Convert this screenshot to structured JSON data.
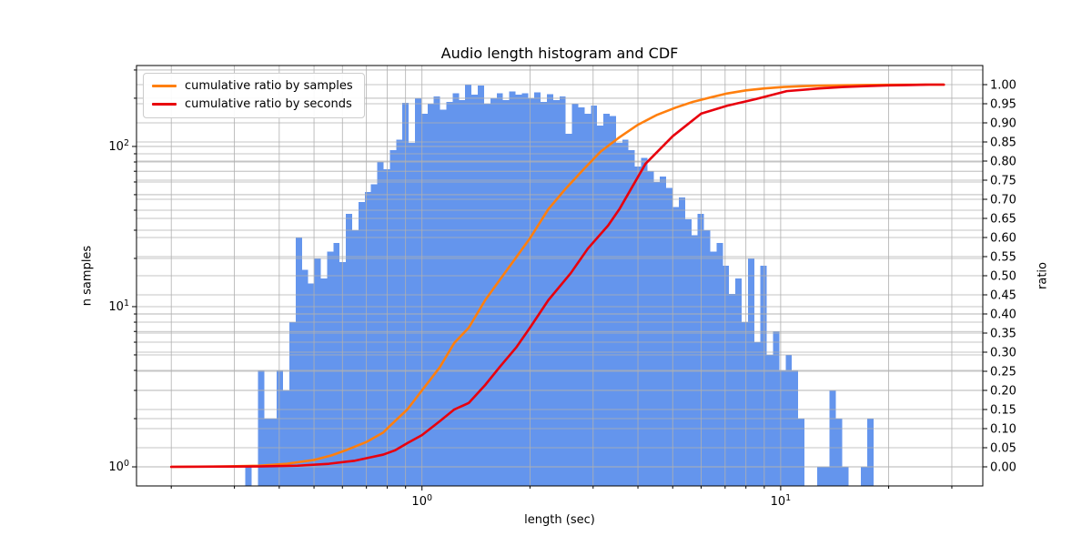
{
  "title": "Audio length histogram and CDF",
  "axis_labels": {
    "x": "length (sec)",
    "y_left": "n samples",
    "y_right": "ratio"
  },
  "legend": {
    "items": [
      {
        "label": "cumulative ratio by samples",
        "color": "#ff7f0e"
      },
      {
        "label": "cumulative ratio by seconds",
        "color": "#e8000d"
      }
    ]
  },
  "colors": {
    "bars": "#6495ed",
    "grid": "#b0b0b0",
    "axis": "#000000",
    "text": "#000000",
    "background": "#ffffff"
  },
  "axes": {
    "x": {
      "scale": "log",
      "range": [
        0.16,
        36.6
      ],
      "major_ticks": [
        {
          "value": 1,
          "base": "10",
          "exp": "0"
        },
        {
          "value": 10,
          "base": "10",
          "exp": "1"
        }
      ],
      "minor_ticks": [
        0.2,
        0.3,
        0.4,
        0.5,
        0.6,
        0.7,
        0.8,
        0.9,
        2,
        3,
        4,
        5,
        6,
        7,
        8,
        9,
        20,
        30
      ]
    },
    "y_left": {
      "scale": "log",
      "range": [
        0.76,
        320
      ],
      "major_ticks": [
        {
          "value": 1,
          "base": "10",
          "exp": "0"
        },
        {
          "value": 10,
          "base": "10",
          "exp": "1"
        },
        {
          "value": 100,
          "base": "10",
          "exp": "2"
        }
      ],
      "minor_ticks": [
        2,
        3,
        4,
        5,
        6,
        7,
        8,
        9,
        20,
        30,
        40,
        50,
        60,
        70,
        80,
        90,
        200,
        300
      ]
    },
    "y_right": {
      "scale": "linear",
      "range": [
        -0.05,
        1.05
      ],
      "ticks": [
        0,
        0.05,
        0.1,
        0.15,
        0.2,
        0.25,
        0.3,
        0.35,
        0.4,
        0.45,
        0.5,
        0.55,
        0.6,
        0.65,
        0.7,
        0.75,
        0.8,
        0.85,
        0.9,
        0.95,
        1
      ],
      "labels": [
        "0.00",
        "0.05",
        "0.10",
        "0.15",
        "0.20",
        "0.25",
        "0.30",
        "0.35",
        "0.40",
        "0.45",
        "0.50",
        "0.55",
        "0.60",
        "0.65",
        "0.70",
        "0.75",
        "0.80",
        "0.85",
        "0.90",
        "0.95",
        "1.00"
      ]
    }
  },
  "chart_data": {
    "type": "histogram_with_cdf_lines",
    "title": "Audio length histogram and CDF",
    "xlabel": "length (sec)",
    "ylabel": "n samples",
    "y2label": "ratio",
    "x_scale": "log",
    "y_scale": "log",
    "histogram": {
      "name": "audio length histogram",
      "unit": "sec",
      "bin_edges_log10": {
        "start": -0.4924,
        "step": 0.017513,
        "n_bins": 100
      },
      "first_bin_sec": 0.322,
      "last_bin_sec": 18.2,
      "counts": [
        1,
        0,
        4,
        2,
        2,
        4,
        3,
        8,
        27,
        17,
        14,
        20,
        15,
        22,
        25,
        19,
        38,
        30,
        45,
        52,
        58,
        80,
        72,
        95,
        110,
        187,
        105,
        200,
        160,
        185,
        205,
        170,
        190,
        215,
        195,
        243,
        210,
        240,
        185,
        200,
        215,
        195,
        220,
        210,
        215,
        200,
        218,
        190,
        212,
        195,
        205,
        120,
        185,
        175,
        160,
        180,
        135,
        160,
        155,
        105,
        110,
        95,
        75,
        85,
        70,
        60,
        65,
        55,
        42,
        48,
        35,
        28,
        38,
        30,
        22,
        25,
        18,
        12,
        15,
        8,
        20,
        6,
        18,
        5,
        7,
        4,
        5,
        4,
        2,
        0,
        0,
        1,
        1,
        3,
        2,
        1,
        0,
        0,
        1,
        2
      ]
    },
    "series": [
      {
        "name": "cumulative ratio by samples",
        "color": "#ff7f0e",
        "points": [
          [
            0.2,
            0
          ],
          [
            0.28,
            0.001
          ],
          [
            0.35,
            0.003
          ],
          [
            0.42,
            0.008
          ],
          [
            0.5,
            0.018
          ],
          [
            0.56,
            0.03
          ],
          [
            0.62,
            0.045
          ],
          [
            0.7,
            0.065
          ],
          [
            0.78,
            0.09
          ],
          [
            0.82,
            0.11
          ],
          [
            0.91,
            0.15
          ],
          [
            1.0,
            0.2
          ],
          [
            1.12,
            0.26
          ],
          [
            1.23,
            0.324
          ],
          [
            1.35,
            0.364
          ],
          [
            1.5,
            0.436
          ],
          [
            1.65,
            0.49
          ],
          [
            1.83,
            0.548
          ],
          [
            2.0,
            0.598
          ],
          [
            2.25,
            0.674
          ],
          [
            2.5,
            0.725
          ],
          [
            2.8,
            0.775
          ],
          [
            3.15,
            0.825
          ],
          [
            3.55,
            0.862
          ],
          [
            4.0,
            0.895
          ],
          [
            4.5,
            0.92
          ],
          [
            5.1,
            0.94
          ],
          [
            5.7,
            0.955
          ],
          [
            6.4,
            0.967
          ],
          [
            7.1,
            0.977
          ],
          [
            8.0,
            0.985
          ],
          [
            9.0,
            0.99
          ],
          [
            10.2,
            0.994
          ],
          [
            11.5,
            0.996
          ],
          [
            13,
            0.9975
          ],
          [
            15,
            0.9985
          ],
          [
            17,
            0.999
          ],
          [
            20,
            0.9995
          ],
          [
            24,
            1.0
          ],
          [
            28.5,
            1.0
          ]
        ]
      },
      {
        "name": "cumulative ratio by seconds",
        "color": "#e8000d",
        "points": [
          [
            0.2,
            0
          ],
          [
            0.35,
            0.001
          ],
          [
            0.45,
            0.003
          ],
          [
            0.55,
            0.008
          ],
          [
            0.65,
            0.016
          ],
          [
            0.72,
            0.025
          ],
          [
            0.78,
            0.032
          ],
          [
            0.84,
            0.043
          ],
          [
            0.91,
            0.062
          ],
          [
            1.0,
            0.083
          ],
          [
            1.12,
            0.119
          ],
          [
            1.23,
            0.15
          ],
          [
            1.35,
            0.167
          ],
          [
            1.5,
            0.214
          ],
          [
            1.65,
            0.262
          ],
          [
            1.83,
            0.312
          ],
          [
            2.0,
            0.364
          ],
          [
            2.25,
            0.436
          ],
          [
            2.6,
            0.507
          ],
          [
            2.9,
            0.571
          ],
          [
            3.3,
            0.631
          ],
          [
            3.55,
            0.674
          ],
          [
            4.2,
            0.793
          ],
          [
            5.0,
            0.865
          ],
          [
            6.0,
            0.924
          ],
          [
            7.1,
            0.945
          ],
          [
            8.5,
            0.962
          ],
          [
            10.4,
            0.983
          ],
          [
            12.8,
            0.99
          ],
          [
            15,
            0.994
          ],
          [
            17.1,
            0.996
          ],
          [
            20,
            0.998
          ],
          [
            23,
            0.999
          ],
          [
            26,
            1.0
          ],
          [
            28.5,
            1.0
          ]
        ]
      }
    ],
    "legend_position": "upper left",
    "grid": true
  }
}
